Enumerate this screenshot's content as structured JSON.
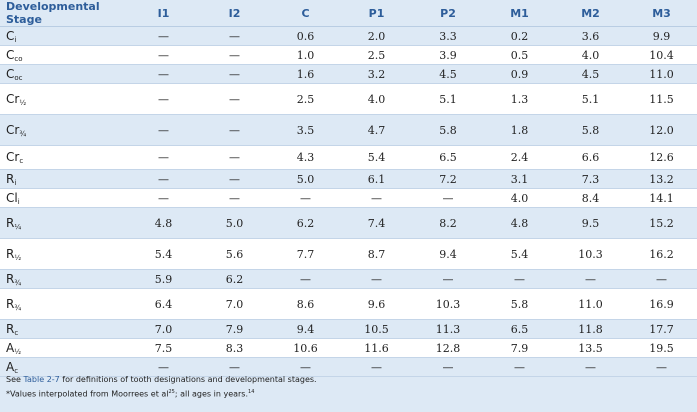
{
  "columns": [
    "Developmental Stage",
    "I1",
    "I2",
    "C",
    "P1",
    "P2",
    "M1",
    "M2",
    "M3"
  ],
  "rows": [
    {
      "base": "C",
      "sub": "i",
      "cells": [
        "—",
        "—",
        "0.6",
        "2.0",
        "3.3",
        "0.2",
        "3.6",
        "9.9"
      ]
    },
    {
      "base": "C",
      "sub": "co",
      "cells": [
        "—",
        "—",
        "1.0",
        "2.5",
        "3.9",
        "0.5",
        "4.0",
        "10.4"
      ]
    },
    {
      "base": "C",
      "sub": "oc",
      "cells": [
        "—",
        "—",
        "1.6",
        "3.2",
        "4.5",
        "0.9",
        "4.5",
        "11.0"
      ]
    },
    {
      "base": "Cr",
      "sub": "½",
      "cells": [
        "—",
        "—",
        "2.5",
        "4.0",
        "5.1",
        "1.3",
        "5.1",
        "11.5"
      ]
    },
    {
      "base": "Cr",
      "sub": "¾",
      "cells": [
        "—",
        "—",
        "3.5",
        "4.7",
        "5.8",
        "1.8",
        "5.8",
        "12.0"
      ]
    },
    {
      "base": "Cr",
      "sub": "c",
      "cells": [
        "—",
        "—",
        "4.3",
        "5.4",
        "6.5",
        "2.4",
        "6.6",
        "12.6"
      ]
    },
    {
      "base": "R",
      "sub": "i",
      "cells": [
        "—",
        "—",
        "5.0",
        "6.1",
        "7.2",
        "3.1",
        "7.3",
        "13.2"
      ]
    },
    {
      "base": "Cl",
      "sub": "i",
      "cells": [
        "—",
        "—",
        "—",
        "—",
        "—",
        "4.0",
        "8.4",
        "14.1"
      ]
    },
    {
      "base": "R",
      "sub": "¼",
      "cells": [
        "4.8",
        "5.0",
        "6.2",
        "7.4",
        "8.2",
        "4.8",
        "9.5",
        "15.2"
      ]
    },
    {
      "base": "R",
      "sub": "½",
      "cells": [
        "5.4",
        "5.6",
        "7.7",
        "8.7",
        "9.4",
        "5.4",
        "10.3",
        "16.2"
      ]
    },
    {
      "base": "R",
      "sub": "¾",
      "cells": [
        "5.9",
        "6.2",
        "—",
        "—",
        "—",
        "—",
        "—",
        "—"
      ]
    },
    {
      "base": "R",
      "sub": "¾",
      "cells": [
        "6.4",
        "7.0",
        "8.6",
        "9.6",
        "10.3",
        "5.8",
        "11.0",
        "16.9"
      ]
    },
    {
      "base": "R",
      "sub": "c",
      "cells": [
        "7.0",
        "7.9",
        "9.4",
        "10.5",
        "11.3",
        "6.5",
        "11.8",
        "17.7"
      ]
    },
    {
      "base": "A",
      "sub": "½",
      "cells": [
        "7.5",
        "8.3",
        "10.6",
        "11.6",
        "12.8",
        "7.9",
        "13.5",
        "19.5"
      ]
    },
    {
      "base": "A",
      "sub": "c",
      "cells": [
        "—",
        "—",
        "—",
        "—",
        "—",
        "—",
        "—",
        "—"
      ]
    }
  ],
  "notes": {
    "line1_pre": "See ",
    "line1_link": "Table 2-7",
    "line1_post": " for definitions of tooth designations and developmental stages.",
    "line2_pre": "*Values interpolated from Moorrees et al",
    "line2_sup1": "25",
    "line2_post": "; all ages in years.",
    "line2_sup2": "14"
  }
}
